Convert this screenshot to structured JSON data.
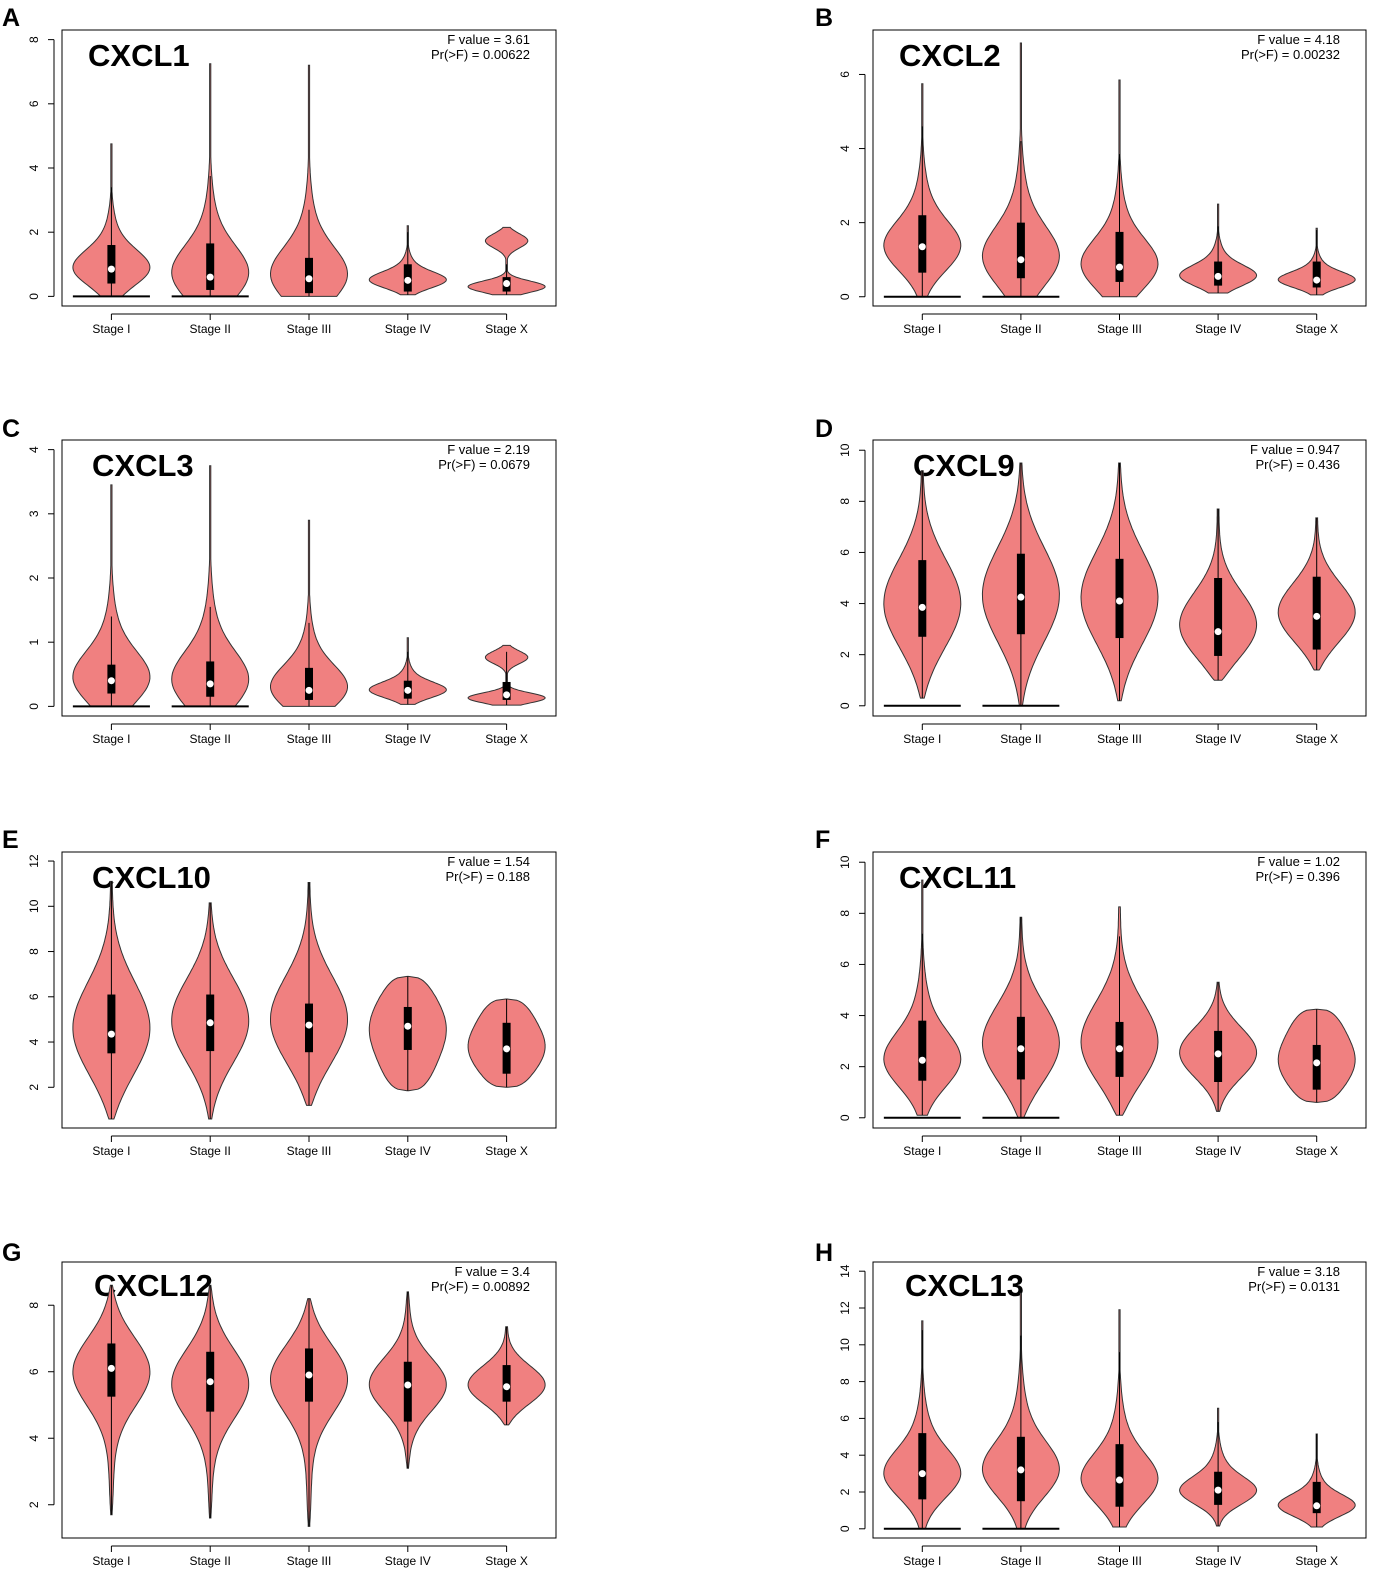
{
  "figure": {
    "violin_color": "#f08080",
    "outline_color": "#333333",
    "box_color": "#000000",
    "median_color": "#ffffff"
  },
  "chart_data": [
    {
      "type": "violin",
      "panel": "A",
      "title": "CXCL1",
      "f_value": "F value = 3.61",
      "p_value": "Pr(>F) = 0.00622",
      "categories": [
        "Stage I",
        "Stage II",
        "Stage III",
        "Stage IV",
        "Stage X"
      ],
      "yticks": [
        0,
        2,
        4,
        6,
        8
      ],
      "ylim": [
        -0.3,
        8.3
      ],
      "groups": [
        {
          "min": 0.0,
          "max": 4.75,
          "q1": 0.4,
          "median": 0.85,
          "q3": 1.6,
          "whisker_hi": 3.4,
          "zero_line": true,
          "shape": "skew"
        },
        {
          "min": 0.0,
          "max": 7.25,
          "q1": 0.2,
          "median": 0.6,
          "q3": 1.65,
          "whisker_hi": 3.75,
          "zero_line": true,
          "shape": "skew"
        },
        {
          "min": 0.0,
          "max": 7.2,
          "q1": 0.1,
          "median": 0.55,
          "q3": 1.2,
          "whisker_hi": 2.7,
          "zero_line": false,
          "shape": "skew"
        },
        {
          "min": 0.05,
          "max": 2.2,
          "q1": 0.15,
          "median": 0.5,
          "q3": 1.0,
          "whisker_hi": 2.0,
          "zero_line": false,
          "shape": "skew"
        },
        {
          "min": 0.05,
          "max": 2.15,
          "q1": 0.15,
          "median": 0.4,
          "q3": 0.6,
          "whisker_hi": 1.0,
          "zero_line": false,
          "shape": "bimodal"
        }
      ]
    },
    {
      "type": "violin",
      "panel": "B",
      "title": "CXCL2",
      "f_value": "F value = 4.18",
      "p_value": "Pr(>F) = 0.00232",
      "categories": [
        "Stage I",
        "Stage II",
        "Stage III",
        "Stage IV",
        "Stage X"
      ],
      "yticks": [
        0,
        2,
        4,
        6
      ],
      "ylim": [
        -0.25,
        7.2
      ],
      "groups": [
        {
          "min": 0.0,
          "max": 5.75,
          "q1": 0.65,
          "median": 1.35,
          "q3": 2.2,
          "whisker_hi": 4.6,
          "zero_line": true,
          "shape": "skew"
        },
        {
          "min": 0.0,
          "max": 6.85,
          "q1": 0.5,
          "median": 1.0,
          "q3": 2.0,
          "whisker_hi": 4.2,
          "zero_line": true,
          "shape": "skew"
        },
        {
          "min": 0.0,
          "max": 5.85,
          "q1": 0.4,
          "median": 0.8,
          "q3": 1.75,
          "whisker_hi": 3.85,
          "zero_line": false,
          "shape": "skew"
        },
        {
          "min": 0.1,
          "max": 2.5,
          "q1": 0.3,
          "median": 0.55,
          "q3": 0.95,
          "whisker_hi": 1.9,
          "zero_line": false,
          "shape": "skew"
        },
        {
          "min": 0.05,
          "max": 1.85,
          "q1": 0.25,
          "median": 0.45,
          "q3": 0.95,
          "whisker_hi": 1.8,
          "zero_line": false,
          "shape": "skew"
        }
      ]
    },
    {
      "type": "violin",
      "panel": "C",
      "title": "CXCL3",
      "f_value": "F value = 2.19",
      "p_value": "Pr(>F) = 0.0679",
      "categories": [
        "Stage I",
        "Stage II",
        "Stage III",
        "Stage IV",
        "Stage X"
      ],
      "yticks": [
        0,
        1,
        2,
        3,
        4
      ],
      "ylim": [
        -0.15,
        4.15
      ],
      "groups": [
        {
          "min": 0.0,
          "max": 3.45,
          "q1": 0.2,
          "median": 0.4,
          "q3": 0.65,
          "whisker_hi": 1.4,
          "zero_line": true,
          "shape": "skew"
        },
        {
          "min": 0.0,
          "max": 3.75,
          "q1": 0.15,
          "median": 0.35,
          "q3": 0.7,
          "whisker_hi": 1.55,
          "zero_line": true,
          "shape": "skew"
        },
        {
          "min": 0.0,
          "max": 2.9,
          "q1": 0.1,
          "median": 0.25,
          "q3": 0.6,
          "whisker_hi": 1.3,
          "zero_line": false,
          "shape": "skew"
        },
        {
          "min": 0.03,
          "max": 1.07,
          "q1": 0.12,
          "median": 0.25,
          "q3": 0.4,
          "whisker_hi": 0.85,
          "zero_line": false,
          "shape": "skew"
        },
        {
          "min": 0.02,
          "max": 0.95,
          "q1": 0.1,
          "median": 0.18,
          "q3": 0.38,
          "whisker_hi": 0.85,
          "zero_line": false,
          "shape": "bimodal"
        }
      ]
    },
    {
      "type": "violin",
      "panel": "D",
      "title": "CXCL9",
      "f_value": "F value = 0.947",
      "p_value": "Pr(>F) = 0.436",
      "categories": [
        "Stage I",
        "Stage II",
        "Stage III",
        "Stage IV",
        "Stage X"
      ],
      "yticks": [
        0,
        2,
        4,
        6,
        8,
        10
      ],
      "ylim": [
        -0.4,
        10.4
      ],
      "groups": [
        {
          "min": 0.3,
          "max": 9.2,
          "q1": 2.7,
          "median": 3.85,
          "q3": 5.7,
          "whisker_hi": 9.2,
          "zero_line": true,
          "shape": "central"
        },
        {
          "min": 0.0,
          "max": 9.5,
          "q1": 2.8,
          "median": 4.25,
          "q3": 5.95,
          "whisker_hi": 9.5,
          "zero_line": true,
          "shape": "central"
        },
        {
          "min": 0.2,
          "max": 9.5,
          "q1": 2.65,
          "median": 4.1,
          "q3": 5.75,
          "whisker_hi": 9.5,
          "zero_line": false,
          "shape": "central"
        },
        {
          "min": 1.0,
          "max": 7.7,
          "q1": 1.95,
          "median": 2.9,
          "q3": 5.0,
          "whisker_hi": 7.7,
          "zero_line": false,
          "shape": "central"
        },
        {
          "min": 1.4,
          "max": 7.35,
          "q1": 2.2,
          "median": 3.5,
          "q3": 5.05,
          "whisker_hi": 7.35,
          "zero_line": false,
          "shape": "central"
        }
      ]
    },
    {
      "type": "violin",
      "panel": "E",
      "title": "CXCL10",
      "f_value": "F value = 1.54",
      "p_value": "Pr(>F) = 0.188",
      "categories": [
        "Stage I",
        "Stage II",
        "Stage III",
        "Stage IV",
        "Stage X"
      ],
      "yticks": [
        2,
        4,
        6,
        8,
        10,
        12
      ],
      "ylim": [
        0.2,
        12.4
      ],
      "groups": [
        {
          "min": 0.6,
          "max": 11.1,
          "q1": 3.5,
          "median": 4.35,
          "q3": 6.1,
          "whisker_hi": 11.1,
          "zero_line": false,
          "shape": "central"
        },
        {
          "min": 0.6,
          "max": 10.15,
          "q1": 3.6,
          "median": 4.85,
          "q3": 6.1,
          "whisker_hi": 10.15,
          "zero_line": false,
          "shape": "central"
        },
        {
          "min": 1.2,
          "max": 11.05,
          "q1": 3.55,
          "median": 4.75,
          "q3": 5.7,
          "whisker_hi": 11.05,
          "zero_line": false,
          "shape": "central"
        },
        {
          "min": 1.85,
          "max": 6.9,
          "q1": 3.65,
          "median": 4.7,
          "q3": 5.55,
          "whisker_hi": 6.9,
          "zero_line": false,
          "shape": "flat"
        },
        {
          "min": 2.0,
          "max": 5.9,
          "q1": 2.6,
          "median": 3.7,
          "q3": 4.85,
          "whisker_hi": 5.9,
          "zero_line": false,
          "shape": "flat"
        }
      ]
    },
    {
      "type": "violin",
      "panel": "F",
      "title": "CXCL11",
      "f_value": "F value = 1.02",
      "p_value": "Pr(>F) = 0.396",
      "categories": [
        "Stage I",
        "Stage II",
        "Stage III",
        "Stage IV",
        "Stage X"
      ],
      "yticks": [
        0,
        2,
        4,
        6,
        8,
        10
      ],
      "ylim": [
        -0.4,
        10.4
      ],
      "groups": [
        {
          "min": 0.1,
          "max": 9.3,
          "q1": 1.45,
          "median": 2.25,
          "q3": 3.8,
          "whisker_hi": 7.2,
          "zero_line": true,
          "shape": "skew"
        },
        {
          "min": 0.0,
          "max": 7.85,
          "q1": 1.5,
          "median": 2.7,
          "q3": 3.95,
          "whisker_hi": 7.85,
          "zero_line": true,
          "shape": "central"
        },
        {
          "min": 0.1,
          "max": 8.25,
          "q1": 1.6,
          "median": 2.7,
          "q3": 3.75,
          "whisker_hi": 7.1,
          "zero_line": false,
          "shape": "central"
        },
        {
          "min": 0.25,
          "max": 5.3,
          "q1": 1.4,
          "median": 2.5,
          "q3": 3.4,
          "whisker_hi": 5.3,
          "zero_line": false,
          "shape": "central"
        },
        {
          "min": 0.6,
          "max": 4.25,
          "q1": 1.1,
          "median": 2.15,
          "q3": 2.85,
          "whisker_hi": 4.25,
          "zero_line": false,
          "shape": "flat"
        }
      ]
    },
    {
      "type": "violin",
      "panel": "G",
      "title": "CXCL12",
      "f_value": "F value = 3.4",
      "p_value": "Pr(>F) = 0.00892",
      "categories": [
        "Stage I",
        "Stage II",
        "Stage III",
        "Stage IV",
        "Stage X"
      ],
      "yticks": [
        2,
        4,
        6,
        8
      ],
      "ylim": [
        1.0,
        9.3
      ],
      "groups": [
        {
          "min": 1.7,
          "max": 8.6,
          "q1": 5.25,
          "median": 6.1,
          "q3": 6.85,
          "whisker_hi": 8.6,
          "zero_line": false,
          "shape": "high"
        },
        {
          "min": 1.6,
          "max": 8.6,
          "q1": 4.8,
          "median": 5.7,
          "q3": 6.6,
          "whisker_hi": 8.6,
          "zero_line": false,
          "shape": "high"
        },
        {
          "min": 1.35,
          "max": 8.2,
          "q1": 5.1,
          "median": 5.9,
          "q3": 6.7,
          "whisker_hi": 8.2,
          "zero_line": false,
          "shape": "high"
        },
        {
          "min": 3.1,
          "max": 8.4,
          "q1": 4.5,
          "median": 5.6,
          "q3": 6.3,
          "whisker_hi": 8.4,
          "zero_line": false,
          "shape": "high"
        },
        {
          "min": 4.4,
          "max": 7.35,
          "q1": 5.1,
          "median": 5.55,
          "q3": 6.2,
          "whisker_hi": 7.35,
          "zero_line": false,
          "shape": "central"
        }
      ]
    },
    {
      "type": "violin",
      "panel": "H",
      "title": "CXCL13",
      "f_value": "F value = 3.18",
      "p_value": "Pr(>F) = 0.0131",
      "categories": [
        "Stage I",
        "Stage II",
        "Stage III",
        "Stage IV",
        "Stage X"
      ],
      "yticks": [
        0,
        2,
        4,
        6,
        8,
        10,
        12,
        14
      ],
      "ylim": [
        -0.5,
        14.5
      ],
      "groups": [
        {
          "min": 0.0,
          "max": 11.3,
          "q1": 1.6,
          "median": 3.0,
          "q3": 5.2,
          "whisker_hi": 10.8,
          "zero_line": true,
          "shape": "skew"
        },
        {
          "min": 0.0,
          "max": 12.8,
          "q1": 1.5,
          "median": 3.2,
          "q3": 5.0,
          "whisker_hi": 10.5,
          "zero_line": true,
          "shape": "skew"
        },
        {
          "min": 0.1,
          "max": 11.9,
          "q1": 1.2,
          "median": 2.65,
          "q3": 4.6,
          "whisker_hi": 9.6,
          "zero_line": false,
          "shape": "skew"
        },
        {
          "min": 0.15,
          "max": 6.55,
          "q1": 1.3,
          "median": 2.1,
          "q3": 3.1,
          "whisker_hi": 5.8,
          "zero_line": false,
          "shape": "skew"
        },
        {
          "min": 0.1,
          "max": 5.15,
          "q1": 0.85,
          "median": 1.25,
          "q3": 2.55,
          "whisker_hi": 5.15,
          "zero_line": false,
          "shape": "skew"
        }
      ]
    }
  ]
}
